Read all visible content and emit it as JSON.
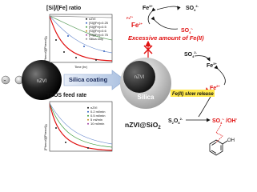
{
  "left": {
    "ratio_title": "[Si]/[Fe] ratio",
    "ratio_legend": [
      "nZVI",
      "[Si]/[Fe]=0.25",
      "[Si]/[Fe]=0.5",
      "[Si]/[Fe]=0.6",
      "[Si]/[Fe]=0.75",
      "Silica only"
    ],
    "teos_title": "TEOS feed rate",
    "teos_legend": [
      "nZVI",
      "0.2 ml/min",
      "0.5 ml/min",
      "5 ml/min",
      "10 ml/min"
    ],
    "y_label": "[Phenol]/[Phenol]",
    "y_label_sub": "0",
    "x_label": "Time (hr)",
    "particle_label": "nZVI",
    "arrow_label": "Silica coating"
  },
  "right": {
    "shell_label": "Silica",
    "core_label": "nZVI",
    "product": {
      "base": "nZVI@SiO",
      "sub": "2"
    },
    "top": {
      "fe3": {
        "base": "Fe",
        "sup": "3+"
      },
      "fe2": {
        "base": "Fe",
        "sup": "2+"
      },
      "so4": {
        "base": "SO",
        "sub": "4",
        "sup": "2-"
      },
      "so4_rad": {
        "base": "SO",
        "sub": "4",
        "sup": "•-"
      },
      "fe2_small": {
        "base": "Fe",
        "sup": "2+"
      },
      "note": "Excessive amount of Fe(II)"
    },
    "bottom": {
      "so4": {
        "base": "SO",
        "sub": "4",
        "sup": "2-"
      },
      "fe3": {
        "base": "Fe",
        "sup": "3+"
      },
      "fe2": {
        "base": "Fe",
        "sup": "2+"
      },
      "release": "Fe(II) slow release",
      "s2o8": {
        "base": "S",
        "sub1": "2",
        "mid": "O",
        "sub": "8",
        "sup": "2-"
      },
      "radicals": {
        "base": "SO",
        "sub": "4",
        "sup": "•-",
        "tail": " /OH",
        "sup2": "•"
      },
      "phenol_oh": "OH"
    }
  }
}
